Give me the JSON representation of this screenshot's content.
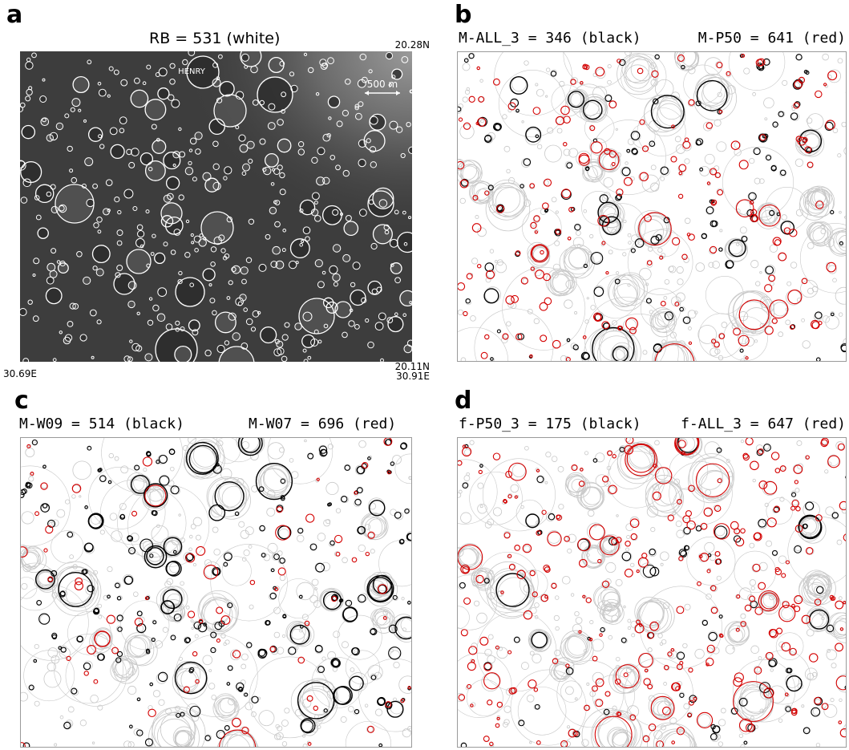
{
  "panel_a": {
    "label": "a",
    "title": "RB = 531 (white)",
    "named_crater": "HENRY",
    "scale_bar": "500 m",
    "coords": {
      "top_right_lat": "20.28N",
      "bottom_right_lat": "20.11N",
      "bottom_right_lon": "30.91E",
      "bottom_left_lon": "30.69E"
    }
  },
  "panel_b": {
    "label": "b",
    "left_title": "M-ALL_3 = 346 (black)",
    "right_title": "M-P50 = 641 (red)"
  },
  "panel_c": {
    "label": "c",
    "left_title": "M-W09 = 514 (black)",
    "right_title": "M-W07 = 696 (red)"
  },
  "panel_d": {
    "label": "d",
    "left_title": "f-P50_3 = 175 (black)",
    "right_title": "f-ALL_3 = 647 (red)"
  },
  "colors": {
    "reference": "#ffffff",
    "first_set": "#000000",
    "second_set": "#d40000",
    "background_detections": "#c8c8c8",
    "terrain": "#3b3b3b"
  }
}
